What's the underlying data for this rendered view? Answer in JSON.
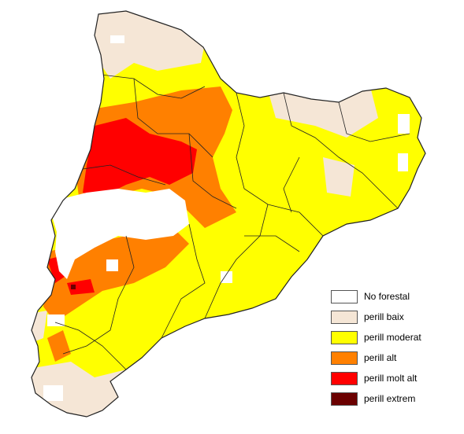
{
  "legend": {
    "items": [
      {
        "label": "No forestal",
        "color": "#ffffff"
      },
      {
        "label": "perill baix",
        "color": "#f5e6d6"
      },
      {
        "label": "perill moderat",
        "color": "#ffff00"
      },
      {
        "label": "perill alt",
        "color": "#ff8000"
      },
      {
        "label": "perill molt alt",
        "color": "#ff0000"
      },
      {
        "label": "perill extrem",
        "color": "#6b0000"
      }
    ]
  },
  "map": {
    "border_color": "#222222"
  }
}
